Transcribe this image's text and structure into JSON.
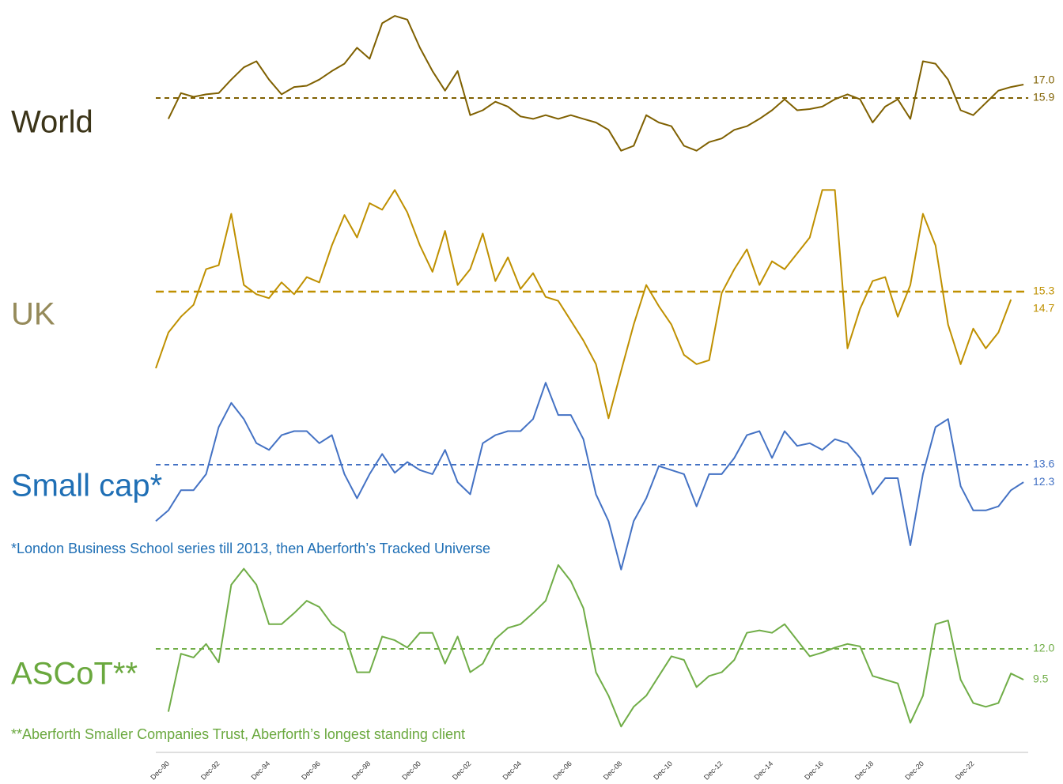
{
  "chart_data": {
    "type": "line",
    "categories": [
      null,
      "Dec-90",
      null,
      null,
      null,
      "Dec-92",
      null,
      null,
      null,
      "Dec-94",
      null,
      null,
      null,
      "Dec-96",
      null,
      null,
      null,
      "Dec-98",
      null,
      null,
      null,
      "Dec-00",
      null,
      null,
      null,
      "Dec-02",
      null,
      null,
      null,
      "Dec-04",
      null,
      null,
      null,
      "Dec-06",
      null,
      null,
      null,
      "Dec-08",
      null,
      null,
      null,
      "Dec-10",
      null,
      null,
      null,
      "Dec-12",
      null,
      null,
      null,
      "Dec-14",
      null,
      null,
      null,
      "Dec-16",
      null,
      null,
      null,
      "Dec-18",
      null,
      null,
      null,
      "Dec-20",
      null,
      null,
      null,
      "Dec-22",
      null,
      null,
      null,
      null
    ],
    "series": [
      {
        "name": "World",
        "color": "#7f6000",
        "ylim": [
          10,
          24
        ],
        "mean": 15.9,
        "latest": {
          "value": 17,
          "label": "17.0"
        },
        "values": [
          null,
          14.2,
          16.3,
          16.0,
          16.2,
          16.3,
          17.4,
          18.4,
          18.9,
          17.4,
          16.2,
          16.8,
          16.9,
          17.4,
          18.1,
          18.7,
          20.0,
          19.1,
          22.0,
          22.6,
          22.3,
          20.0,
          18.1,
          16.5,
          18.1,
          14.5,
          14.9,
          15.6,
          15.2,
          14.4,
          14.2,
          14.5,
          14.2,
          14.5,
          14.2,
          13.9,
          13.3,
          11.6,
          12.0,
          14.5,
          13.9,
          13.6,
          12.0,
          11.6,
          12.3,
          12.6,
          13.3,
          13.6,
          14.2,
          14.9,
          15.8,
          14.9,
          15.0,
          15.2,
          15.8,
          16.2,
          15.8,
          13.9,
          15.2,
          15.8,
          14.2,
          18.9,
          18.7,
          17.4,
          14.9,
          14.5,
          15.5,
          16.5,
          16.8,
          17.0
        ]
      },
      {
        "name": "UK",
        "color": "#bf9000",
        "ylim": [
          5,
          24
        ],
        "mean": 15.3,
        "latest": 14.7,
        "values": [
          9.5,
          12.2,
          13.4,
          14.3,
          17.0,
          17.3,
          21.2,
          15.8,
          15.1,
          14.8,
          16.0,
          15.1,
          16.4,
          16.0,
          18.8,
          21.1,
          19.4,
          22.0,
          21.5,
          23.0,
          21.3,
          18.8,
          16.8,
          19.9,
          15.8,
          17.0,
          19.7,
          16.1,
          17.9,
          15.5,
          16.7,
          14.9,
          14.6,
          13.1,
          11.6,
          9.8,
          5.7,
          9.3,
          12.8,
          15.8,
          14.2,
          12.8,
          10.5,
          9.8,
          10.1,
          15.2,
          17.0,
          18.5,
          15.8,
          17.6,
          17.0,
          18.2,
          19.4,
          23.0,
          23.0,
          11.0,
          14.0,
          16.1,
          16.4,
          13.4,
          15.8,
          21.2,
          18.8,
          12.8,
          9.8,
          12.5,
          11.0,
          12.2,
          14.7,
          null
        ]
      },
      {
        "name": "Small cap*",
        "color": "#4472c4",
        "ylim": [
          5,
          20
        ],
        "mean": 13.6,
        "latest": 12.3,
        "values": [
          9.4,
          10.2,
          11.7,
          11.7,
          12.9,
          16.4,
          18.2,
          17.0,
          15.2,
          14.7,
          15.8,
          16.1,
          16.1,
          15.2,
          15.8,
          12.9,
          11.1,
          12.9,
          14.4,
          13.0,
          13.8,
          13.2,
          12.9,
          14.7,
          12.3,
          11.4,
          15.2,
          15.8,
          16.1,
          16.1,
          17.0,
          19.7,
          17.3,
          17.3,
          15.5,
          11.4,
          9.4,
          5.8,
          9.4,
          11.1,
          13.5,
          13.2,
          12.9,
          10.5,
          12.9,
          12.9,
          14.1,
          15.8,
          16.1,
          14.1,
          16.1,
          15.0,
          15.2,
          14.7,
          15.5,
          15.2,
          14.1,
          11.4,
          12.6,
          12.6,
          7.6,
          12.9,
          16.4,
          17.0,
          12.0,
          10.2,
          10.2,
          10.5,
          11.7,
          12.3
        ]
      },
      {
        "name": "ASCoT**",
        "color": "#70ad47",
        "ylim": [
          5,
          19
        ],
        "mean": {
          "value": 12,
          "label": "12.0"
        },
        "latest": 9.5,
        "values": [
          null,
          6.9,
          11.6,
          11.3,
          12.4,
          10.9,
          17.2,
          18.5,
          17.2,
          14.0,
          14.0,
          14.9,
          15.9,
          15.4,
          14.0,
          13.3,
          10.1,
          10.1,
          13.0,
          12.7,
          12.1,
          13.3,
          13.3,
          10.8,
          13.0,
          10.1,
          10.8,
          12.8,
          13.7,
          14.0,
          14.9,
          15.9,
          18.8,
          17.5,
          15.3,
          10.1,
          8.2,
          5.7,
          7.3,
          8.2,
          9.8,
          11.4,
          11.1,
          8.9,
          9.8,
          10.1,
          11.1,
          13.3,
          13.5,
          13.3,
          14.0,
          12.7,
          11.4,
          11.7,
          12.1,
          12.4,
          12.2,
          9.8,
          9.5,
          9.2,
          6.0,
          8.2,
          14.0,
          14.3,
          9.5,
          7.6,
          7.3,
          7.6,
          10.0,
          9.5
        ]
      }
    ],
    "notes": [
      "*London Business School series till 2013, then Aberforth’s Tracked Universe",
      "**Aberforth Smaller Companies Trust, Aberforth’s longest standing client"
    ]
  }
}
